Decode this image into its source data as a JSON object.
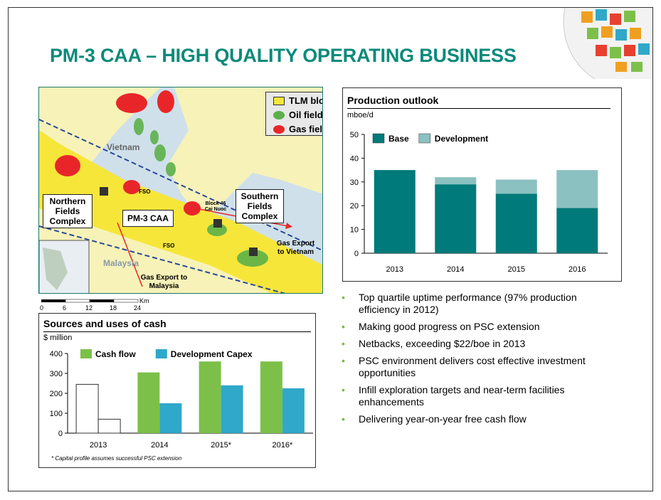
{
  "title": "PM-3 CAA – HIGH QUALITY OPERATING BUSINESS",
  "colors": {
    "title": "#0b8a7a",
    "base": "#007a7a",
    "development": "#8cc1c1",
    "cash_flow": "#7cc04a",
    "dev_capex": "#2fa8c9",
    "bullet": "#74b944"
  },
  "map": {
    "legend": {
      "tlm_block": "TLM block",
      "oil_field": "Oil field",
      "gas_field": "Gas field"
    },
    "labels": {
      "vietnam": "Vietnam",
      "malaysia": "Malaysia",
      "northern": "Northern Fields Complex",
      "southern": "Southern Fields Complex",
      "pm3": "PM-3 CAA",
      "block46": "Block 46 Cai Nuoc",
      "fso1": "FSO",
      "fso2": "FSO",
      "gas_vn": "Gas Export to Vietnam",
      "gas_my": "Gas Export to Malaysia"
    },
    "scale": {
      "ticks": [
        "0",
        "6",
        "12",
        "18",
        "24"
      ],
      "unit": "Km"
    }
  },
  "production_chart": {
    "title": "Production outlook",
    "unit": "mboe/d"
  },
  "cash_chart": {
    "title": "Sources and uses of cash",
    "unit": "$ million",
    "footnote": "* Capital profile assumes successful PSC extension"
  },
  "chart_data": [
    {
      "type": "bar",
      "title": "Production outlook",
      "ylabel": "mboe/d",
      "stacked": true,
      "categories": [
        "2013",
        "2014",
        "2015",
        "2016"
      ],
      "series": [
        {
          "name": "Base",
          "values": [
            35,
            29,
            25,
            19
          ]
        },
        {
          "name": "Development",
          "values": [
            0,
            3,
            6,
            16
          ]
        }
      ],
      "ylim": [
        0,
        50
      ],
      "yticks": [
        0,
        10,
        20,
        30,
        40,
        50
      ],
      "legend": "top-left",
      "grid": false
    },
    {
      "type": "bar",
      "title": "Sources and uses of cash",
      "ylabel": "$ million",
      "categories": [
        "2013",
        "2014",
        "2015*",
        "2016*"
      ],
      "series": [
        {
          "name": "Cash flow",
          "values": [
            245,
            305,
            360,
            360
          ]
        },
        {
          "name": "Development Capex",
          "values": [
            70,
            150,
            240,
            225
          ]
        }
      ],
      "ylim": [
        0,
        400
      ],
      "yticks": [
        0,
        100,
        200,
        300,
        400
      ],
      "legend": "top",
      "grid": false
    }
  ],
  "bullets": [
    "Top quartile uptime performance (97% production efficiency in 2012)",
    "Making good progress on PSC extension",
    "Netbacks, exceeding $22/boe in 2013",
    "PSC environment delivers cost effective investment opportunities",
    "Infill exploration targets and near-term facilities enhancements",
    "Delivering year-on-year free cash flow"
  ]
}
